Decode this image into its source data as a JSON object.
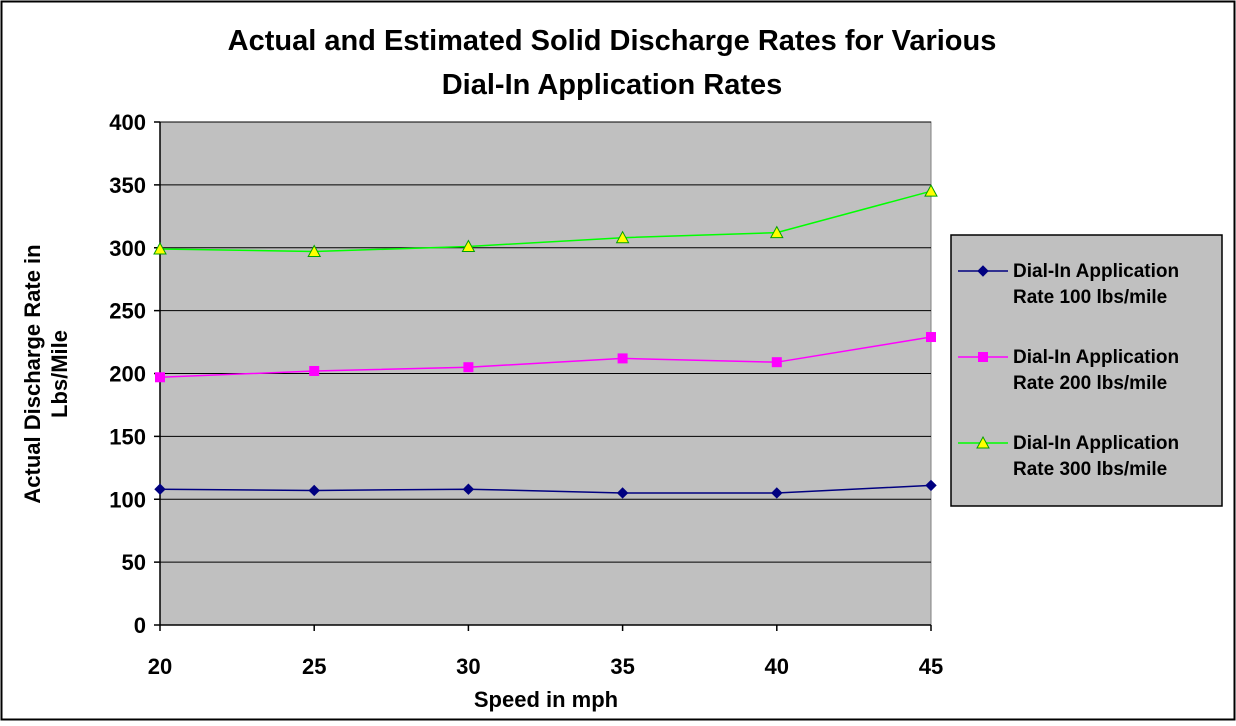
{
  "chart_data": {
    "type": "line",
    "title_lines": [
      "Actual and Estimated Solid Discharge Rates for Various",
      "Dial-In Application Rates"
    ],
    "xlabel": "Speed in mph",
    "ylabel_lines": [
      "Actual Discharge Rate in",
      "Lbs/Mile"
    ],
    "x": [
      20,
      25,
      30,
      35,
      40,
      45
    ],
    "x_tick_labels": [
      "20",
      "25",
      "30",
      "35",
      "40",
      "45"
    ],
    "ylim": [
      0,
      400
    ],
    "y_ticks": [
      0,
      50,
      100,
      150,
      200,
      250,
      300,
      350,
      400
    ],
    "y_tick_labels": [
      "0",
      "50",
      "100",
      "150",
      "200",
      "250",
      "300",
      "350",
      "400"
    ],
    "grid": true,
    "legend_position": "right",
    "plot_background": "#c0c0c0",
    "series": [
      {
        "name_lines": [
          "Dial-In Application",
          "Rate 100 lbs/mile"
        ],
        "values": [
          108,
          107,
          108,
          105,
          105,
          111
        ],
        "color": "#000080",
        "marker": "diamond",
        "marker_fill": "#000080",
        "marker_stroke": "#000080"
      },
      {
        "name_lines": [
          "Dial-In Application",
          "Rate 200 lbs/mile"
        ],
        "values": [
          197,
          202,
          205,
          212,
          209,
          229
        ],
        "color": "#ff00ff",
        "marker": "square",
        "marker_fill": "#ff00ff",
        "marker_stroke": "#ff00ff"
      },
      {
        "name_lines": [
          "Dial-In Application",
          "Rate 300 lbs/mile"
        ],
        "values": [
          299,
          297,
          301,
          308,
          312,
          345
        ],
        "color": "#00ff00",
        "marker": "triangle",
        "marker_fill": "#ffff00",
        "marker_stroke": "#00a000"
      }
    ]
  }
}
